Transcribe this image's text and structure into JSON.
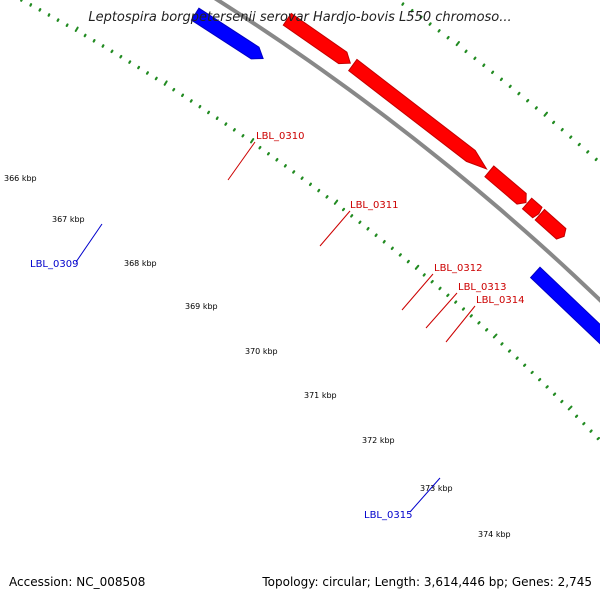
{
  "title": "Leptospira borgpetersenii serovar Hardjo-bovis L550 chromoso...",
  "footer": {
    "accession": "Accession: NC_008508",
    "summary": "Topology: circular; Length: 3,614,446 bp; Genes: 2,745"
  },
  "colors": {
    "forward_strand": "#ff0000",
    "reverse_strand": "#0000ff",
    "rna_feature": "#00c8c8",
    "backbone": "#888888",
    "tick_mark": "#228b22"
  },
  "ticks": [
    {
      "label": "366 kbp"
    },
    {
      "label": "367 kbp"
    },
    {
      "label": "368 kbp"
    },
    {
      "label": "369 kbp"
    },
    {
      "label": "370 kbp"
    },
    {
      "label": "371 kbp"
    },
    {
      "label": "372 kbp"
    },
    {
      "label": "373 kbp"
    },
    {
      "label": "374 kbp"
    }
  ],
  "gene_labels": [
    {
      "id": "LBL_0309",
      "strand": "reverse"
    },
    {
      "id": "LBL_0310",
      "strand": "forward"
    },
    {
      "id": "LBL_0311",
      "strand": "forward"
    },
    {
      "id": "LBL_0312",
      "strand": "forward"
    },
    {
      "id": "LBL_0313",
      "strand": "forward"
    },
    {
      "id": "LBL_0314",
      "strand": "forward"
    },
    {
      "id": "LBL_0315",
      "strand": "reverse"
    }
  ]
}
